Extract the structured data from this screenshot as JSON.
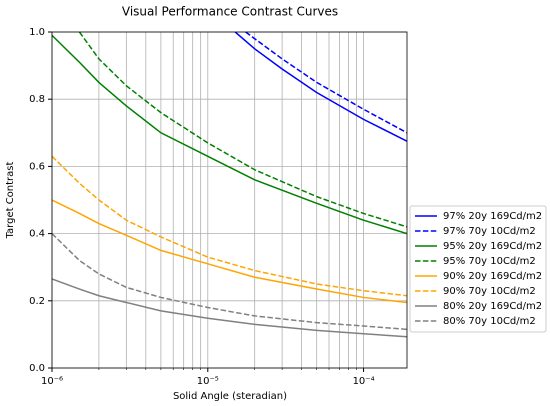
{
  "chart_data": {
    "type": "line",
    "title": "Visual Performance Contrast Curves",
    "xlabel": "Solid Angle (steradian)",
    "ylabel": "Target Contrast",
    "xscale": "log",
    "xlim": [
      1e-06,
      0.00019
    ],
    "ylim": [
      0,
      1
    ],
    "xticks": [
      {
        "value": 1e-06,
        "label": "10⁻⁶"
      },
      {
        "value": 1e-05,
        "label": "10⁻⁵"
      },
      {
        "value": 0.0001,
        "label": "10⁻⁴"
      }
    ],
    "xminorticks": [
      2e-06,
      3e-06,
      4e-06,
      5e-06,
      6e-06,
      7e-06,
      8e-06,
      9e-06,
      2e-05,
      3e-05,
      4e-05,
      5e-05,
      6e-05,
      7e-05,
      8e-05,
      9e-05
    ],
    "yticks": [
      {
        "value": 0,
        "label": "0.0"
      },
      {
        "value": 0.2,
        "label": "0.2"
      },
      {
        "value": 0.4,
        "label": "0.4"
      },
      {
        "value": 0.6,
        "label": "0.6"
      },
      {
        "value": 0.8,
        "label": "0.8"
      },
      {
        "value": 1,
        "label": "1.0"
      }
    ],
    "grid": true,
    "legend": "outside right",
    "series": [
      {
        "name": "97% 20y 169Cd/m2",
        "color": "#0000ff",
        "linestyle": "solid",
        "x": [
          1.5e-05,
          2e-05,
          3e-05,
          5e-05,
          0.0001,
          0.00019
        ],
        "values": [
          1.0,
          0.95,
          0.89,
          0.82,
          0.74,
          0.675
        ]
      },
      {
        "name": "97% 70y 10Cd/m2",
        "color": "#0000ff",
        "linestyle": "dashed",
        "x": [
          1.75e-05,
          2e-05,
          3e-05,
          5e-05,
          0.0001,
          0.00019
        ],
        "values": [
          1.0,
          0.98,
          0.92,
          0.85,
          0.77,
          0.7
        ]
      },
      {
        "name": "95% 20y 169Cd/m2",
        "color": "#008000",
        "linestyle": "solid",
        "x": [
          1e-06,
          1.5e-06,
          2e-06,
          3e-06,
          5e-06,
          1e-05,
          2e-05,
          5e-05,
          0.0001,
          0.00019
        ],
        "values": [
          0.99,
          0.91,
          0.85,
          0.78,
          0.7,
          0.63,
          0.56,
          0.49,
          0.44,
          0.4
        ]
      },
      {
        "name": "95% 70y 10Cd/m2",
        "color": "#008000",
        "linestyle": "dashed",
        "x": [
          1.5e-06,
          2e-06,
          3e-06,
          5e-06,
          1e-05,
          2e-05,
          5e-05,
          0.0001,
          0.00019
        ],
        "values": [
          1.0,
          0.92,
          0.84,
          0.76,
          0.67,
          0.59,
          0.51,
          0.46,
          0.42
        ]
      },
      {
        "name": "90% 20y 169Cd/m2",
        "color": "#ffa500",
        "linestyle": "solid",
        "x": [
          1e-06,
          1.5e-06,
          2e-06,
          3e-06,
          5e-06,
          1e-05,
          2e-05,
          5e-05,
          0.0001,
          0.00019
        ],
        "values": [
          0.5,
          0.46,
          0.43,
          0.395,
          0.35,
          0.31,
          0.27,
          0.235,
          0.21,
          0.195
        ]
      },
      {
        "name": "90% 70y 10Cd/m2",
        "color": "#ffa500",
        "linestyle": "dashed",
        "x": [
          1e-06,
          1.5e-06,
          2e-06,
          3e-06,
          5e-06,
          1e-05,
          2e-05,
          5e-05,
          0.0001,
          0.00019
        ],
        "values": [
          0.63,
          0.55,
          0.5,
          0.44,
          0.39,
          0.33,
          0.29,
          0.25,
          0.23,
          0.215
        ]
      },
      {
        "name": "80% 20y 169Cd/m2",
        "color": "#808080",
        "linestyle": "solid",
        "x": [
          1e-06,
          1.5e-06,
          2e-06,
          3e-06,
          5e-06,
          1e-05,
          2e-05,
          5e-05,
          0.0001,
          0.00019
        ],
        "values": [
          0.265,
          0.235,
          0.215,
          0.195,
          0.17,
          0.148,
          0.13,
          0.112,
          0.102,
          0.093
        ]
      },
      {
        "name": "80% 70y 10Cd/m2",
        "color": "#808080",
        "linestyle": "dashed",
        "x": [
          1e-06,
          1.5e-06,
          2e-06,
          3e-06,
          5e-06,
          1e-05,
          2e-05,
          5e-05,
          0.0001,
          0.00019
        ],
        "values": [
          0.4,
          0.32,
          0.28,
          0.24,
          0.21,
          0.18,
          0.155,
          0.135,
          0.125,
          0.115
        ]
      }
    ]
  }
}
